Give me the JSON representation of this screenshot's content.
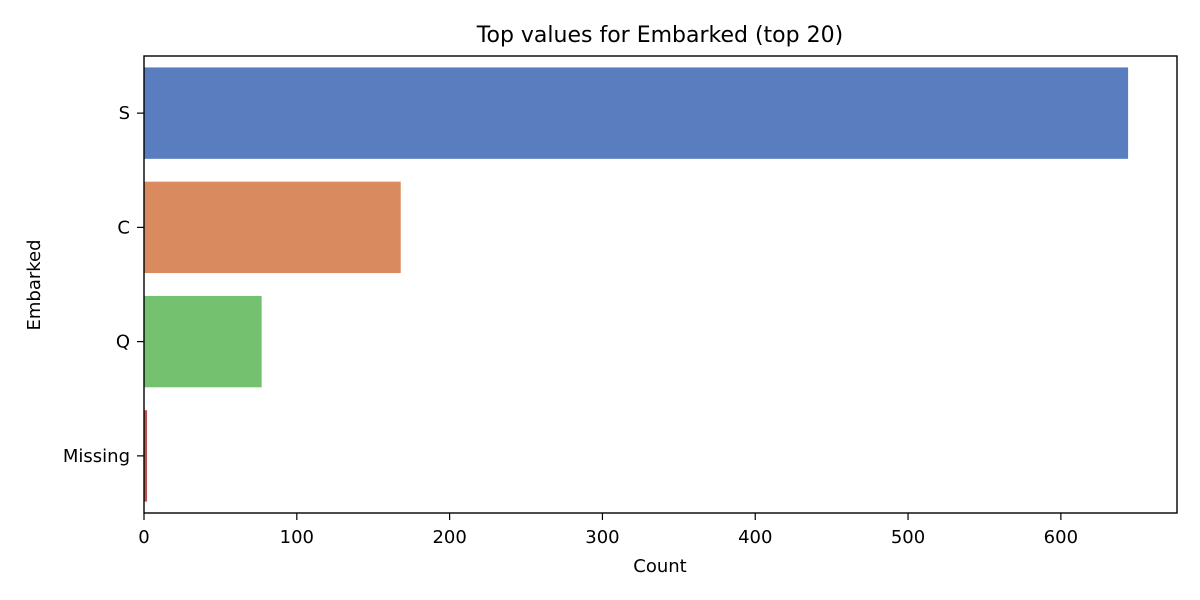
{
  "chart_data": {
    "type": "bar",
    "orientation": "horizontal",
    "title": "Top values for Embarked (top 20)",
    "xlabel": "Count",
    "ylabel": "Embarked",
    "categories": [
      "S",
      "C",
      "Q",
      "Missing"
    ],
    "values": [
      644,
      168,
      77,
      2
    ],
    "colors": [
      "#5a7dbf",
      "#d98b5f",
      "#74c26f",
      "#c0504d"
    ],
    "xlim": [
      0,
      676
    ],
    "xticks": [
      0,
      100,
      200,
      300,
      400,
      500,
      600
    ],
    "grid": false,
    "legend": "none"
  }
}
